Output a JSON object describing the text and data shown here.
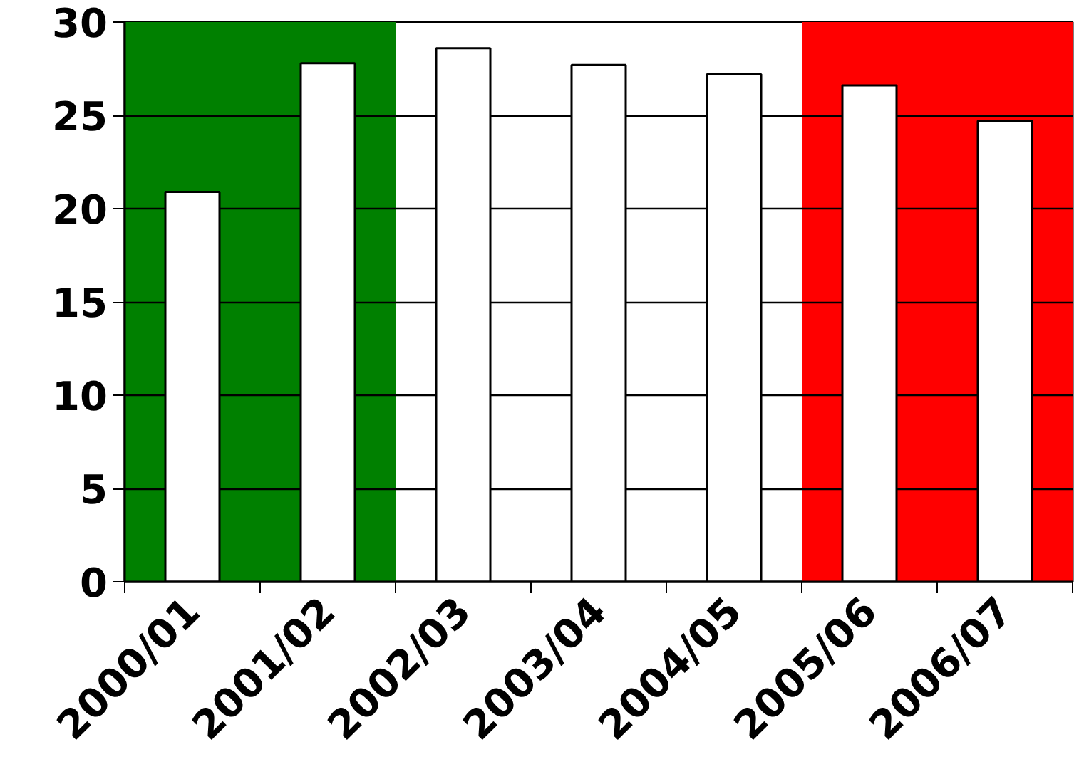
{
  "chart_data": {
    "type": "bar",
    "categories": [
      "2000/01",
      "2001/02",
      "2002/03",
      "2003/04",
      "2004/05",
      "2005/06",
      "2006/07"
    ],
    "values": [
      20.9,
      27.8,
      28.6,
      27.7,
      27.2,
      26.6,
      24.7
    ],
    "color": "#ffffff",
    "ylim": [
      0,
      30
    ],
    "yticks": [
      0,
      5,
      10,
      15,
      20,
      25,
      30
    ],
    "grid": "y",
    "bands": [
      {
        "axis": "x",
        "from": "2000/01",
        "to": "2001/02",
        "color": "#008000"
      },
      {
        "axis": "x",
        "from": "2005/06",
        "to": "2006/07",
        "color": "#ff0000"
      }
    ]
  }
}
